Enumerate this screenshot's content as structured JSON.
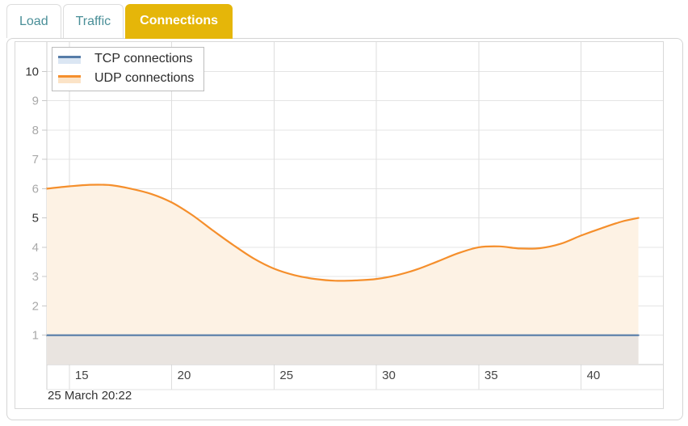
{
  "tabs": [
    {
      "label": "Load",
      "active": false
    },
    {
      "label": "Traffic",
      "active": false
    },
    {
      "label": "Connections",
      "active": true
    }
  ],
  "colors": {
    "active_tab_bg": "#e5b609",
    "active_tab_text": "#ffffff",
    "inactive_tab_text": "#4a8f98",
    "tcp_line": "#567ca8",
    "udp_line": "#f58f2c",
    "tcp_area": "#e9e4e0",
    "udp_area": "#fdf2e4",
    "grid": "#e4e4e4",
    "axis": "#c9c9c9",
    "y_label_gray": "#a8a8a8",
    "label_dark": "#333333"
  },
  "chart_data": {
    "type": "area",
    "title": "",
    "xlabel": "",
    "ylabel": "",
    "grid": true,
    "legend_position": "top-left",
    "x_ticks": [
      15,
      20,
      25,
      30,
      35,
      40
    ],
    "y_ticks": [
      1,
      2,
      3,
      4,
      5,
      6,
      7,
      8,
      9,
      10
    ],
    "y_ticks_emphasized": [
      5,
      10
    ],
    "x_range": [
      13.9,
      44
    ],
    "y_range": [
      0,
      11
    ],
    "footer_label": "25 March 20:22",
    "series": [
      {
        "name": "TCP connections",
        "color": "#567ca8",
        "area_fill": "#e9e4e0",
        "legend_fill": "#dbe6f3",
        "smooth": false,
        "x": [
          13.9,
          42.8
        ],
        "values": [
          1,
          1
        ]
      },
      {
        "name": "UDP connections",
        "color": "#f58f2c",
        "area_fill": "#fdf2e4",
        "legend_fill": "#fbe3c7",
        "smooth": true,
        "x": [
          13.9,
          15,
          16,
          17,
          18,
          19,
          20,
          21,
          22,
          23,
          24,
          25,
          26,
          27,
          28,
          29,
          30,
          31,
          32,
          33,
          34,
          35,
          36,
          37,
          38,
          39,
          40,
          41,
          42,
          42.8
        ],
        "values": [
          6.0,
          6.08,
          6.13,
          6.12,
          6.0,
          5.82,
          5.53,
          5.1,
          4.58,
          4.08,
          3.62,
          3.27,
          3.05,
          2.92,
          2.86,
          2.87,
          2.92,
          3.05,
          3.25,
          3.52,
          3.8,
          4.0,
          4.03,
          3.96,
          3.97,
          4.12,
          4.4,
          4.65,
          4.88,
          5.0
        ]
      }
    ]
  }
}
